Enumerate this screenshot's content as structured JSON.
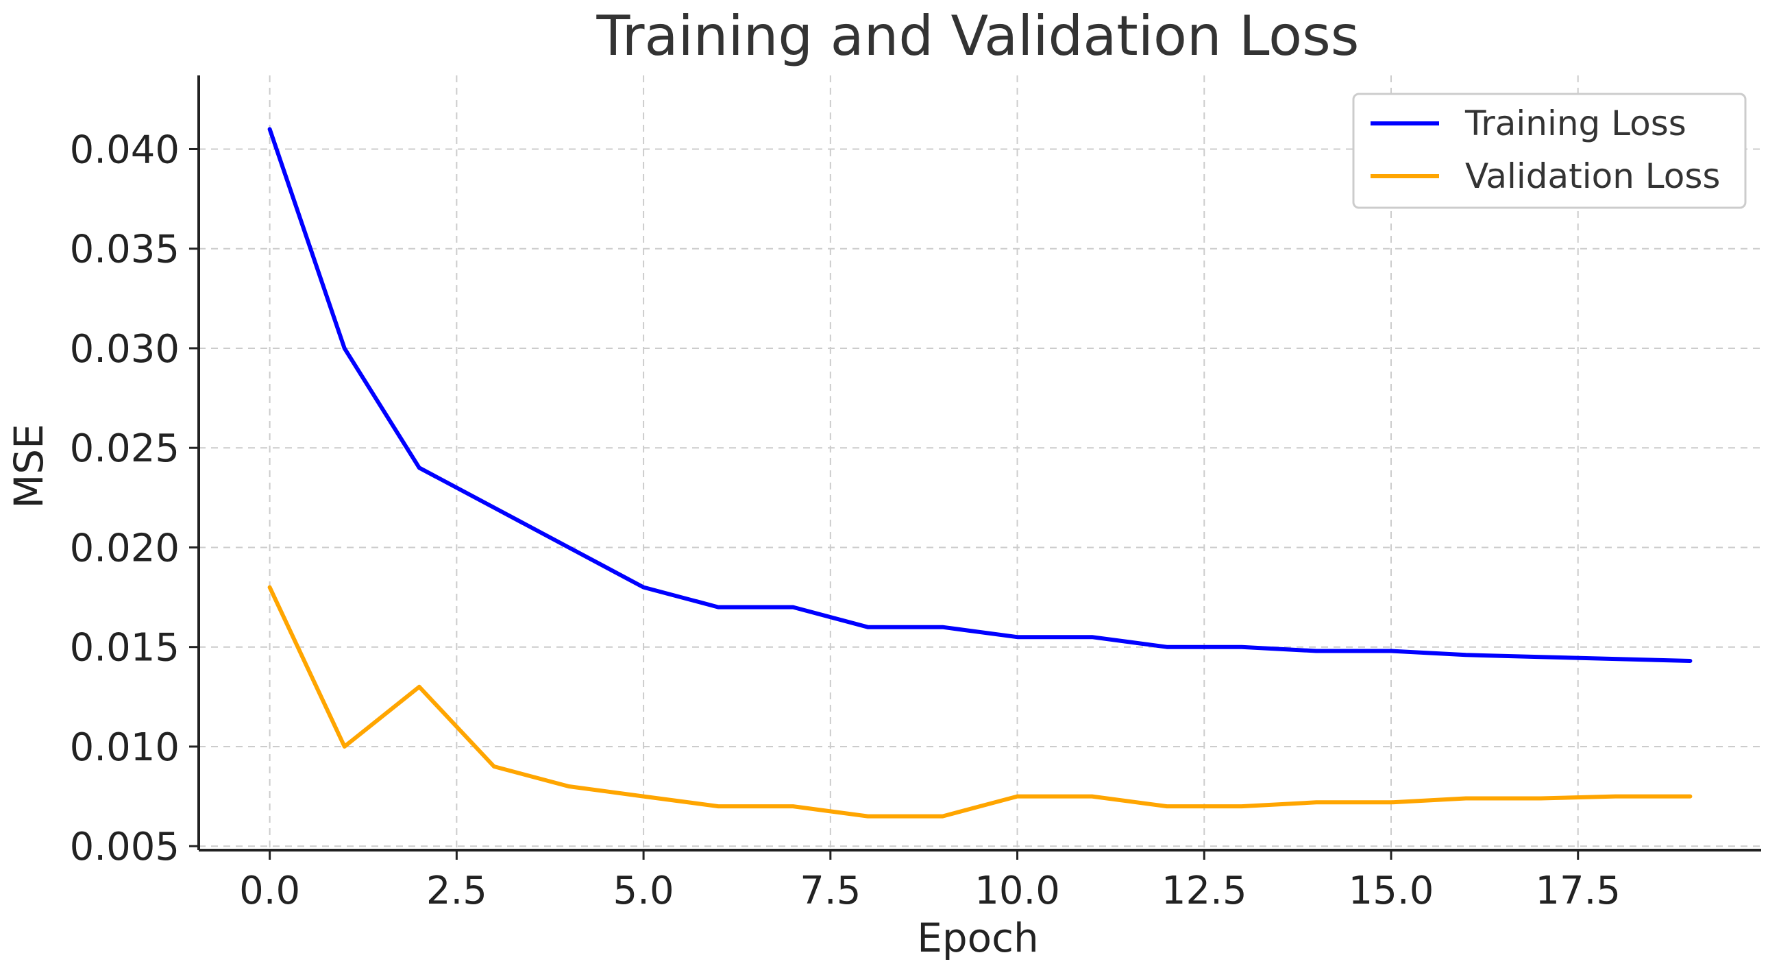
{
  "chart_data": {
    "type": "line",
    "title": "Training and Validation Loss",
    "xlabel": "Epoch",
    "ylabel": "MSE",
    "xlim": [
      -0.95,
      19.95
    ],
    "ylim": [
      0.0048,
      0.0437
    ],
    "xticks": [
      0.0,
      2.5,
      5.0,
      7.5,
      10.0,
      12.5,
      15.0,
      17.5
    ],
    "xtick_labels": [
      "0.0",
      "2.5",
      "5.0",
      "7.5",
      "10.0",
      "12.5",
      "15.0",
      "17.5"
    ],
    "yticks": [
      0.005,
      0.01,
      0.015,
      0.02,
      0.025,
      0.03,
      0.035,
      0.04
    ],
    "ytick_labels": [
      "0.005",
      "0.010",
      "0.015",
      "0.020",
      "0.025",
      "0.030",
      "0.035",
      "0.040"
    ],
    "grid": true,
    "legend_position": "top-right",
    "x": [
      0,
      1,
      2,
      3,
      4,
      5,
      6,
      7,
      8,
      9,
      10,
      11,
      12,
      13,
      14,
      15,
      16,
      17,
      18,
      19
    ],
    "series": [
      {
        "name": "Training Loss",
        "color": "#0000ff",
        "values": [
          0.041,
          0.03,
          0.024,
          0.022,
          0.02,
          0.018,
          0.017,
          0.017,
          0.016,
          0.016,
          0.0155,
          0.0155,
          0.015,
          0.015,
          0.0148,
          0.0148,
          0.0146,
          0.0145,
          0.0144,
          0.0143
        ]
      },
      {
        "name": "Validation Loss",
        "color": "#ffa500",
        "values": [
          0.018,
          0.01,
          0.013,
          0.009,
          0.008,
          0.0075,
          0.007,
          0.007,
          0.0065,
          0.0065,
          0.0075,
          0.0075,
          0.007,
          0.007,
          0.0072,
          0.0072,
          0.0074,
          0.0074,
          0.0075,
          0.0075
        ]
      }
    ]
  }
}
